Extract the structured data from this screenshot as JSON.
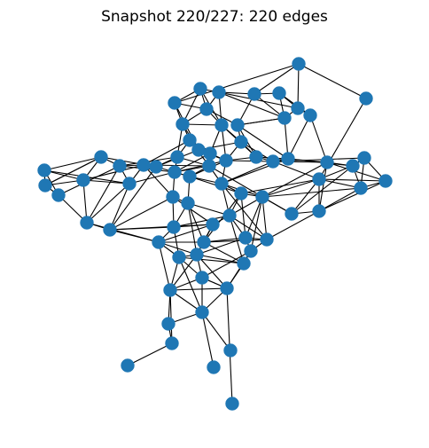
{
  "title": "Snapshot 220/227: 220 edges",
  "colors": {
    "node": "#1f77b4",
    "edge": "#000000",
    "background": "#ffffff"
  }
}
